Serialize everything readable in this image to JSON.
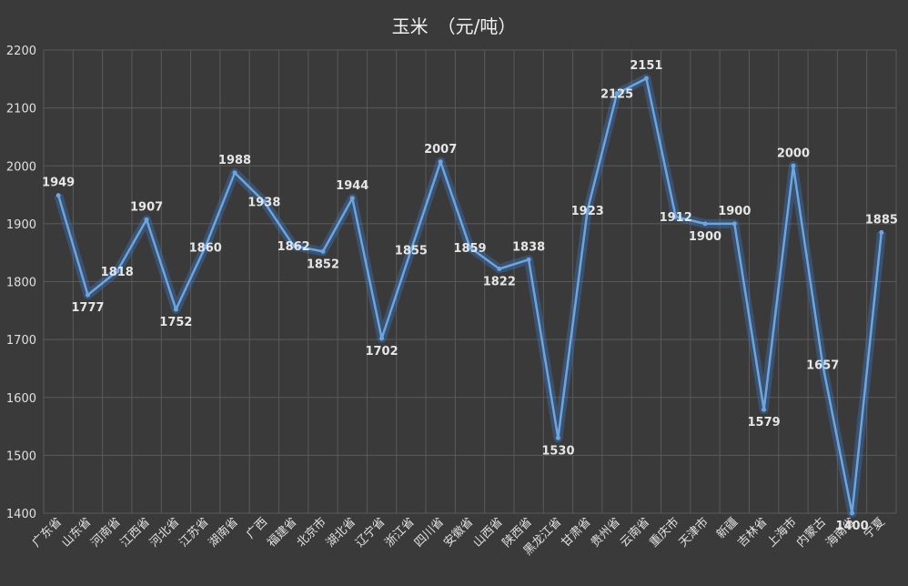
{
  "chart_data": {
    "type": "line",
    "title": "玉米　（元/吨）",
    "xlabel": "",
    "ylabel": "",
    "ylim": [
      1400,
      2200
    ],
    "yticks": [
      1400,
      1500,
      1600,
      1700,
      1800,
      1900,
      2000,
      2100,
      2200
    ],
    "grid": true,
    "legend": "none",
    "categories": [
      "广东省",
      "山东省",
      "河南省",
      "江西省",
      "河北省",
      "江苏省",
      "湖南省",
      "广西",
      "福建省",
      "北京市",
      "湖北省",
      "辽宁省",
      "浙江省",
      "四川省",
      "安徽省",
      "山西省",
      "陕西省",
      "黑龙江省",
      "甘肃省",
      "贵州省",
      "云南省",
      "重庆市",
      "天津市",
      "新疆",
      "吉林省",
      "上海市",
      "内蒙古",
      "海南省",
      "宁夏"
    ],
    "series": [
      {
        "values": [
          1949,
          1777,
          1818,
          1907,
          1752,
          1860,
          1988,
          1938,
          1862,
          1852,
          1944,
          1702,
          1855,
          2007,
          1859,
          1822,
          1838,
          1530,
          1923,
          2125,
          2151,
          1912,
          1900,
          1900,
          1579,
          2000,
          1657,
          1400,
          1885
        ],
        "color": "#6aa6e0"
      }
    ]
  }
}
